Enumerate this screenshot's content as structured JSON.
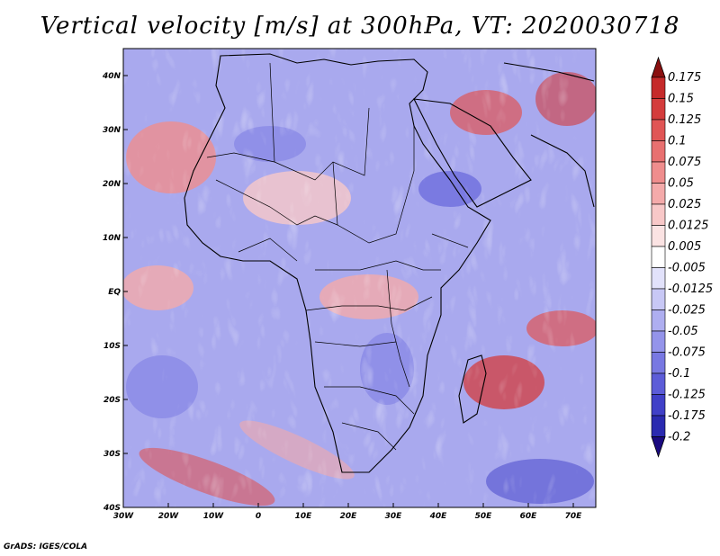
{
  "title": "Vertical velocity [m/s] at 300hPa, VT: 2020030718",
  "credit": "GrADS: IGES/COLA",
  "map": {
    "lon_ticks": [
      "30W",
      "20W",
      "10W",
      "0",
      "10E",
      "20E",
      "30E",
      "40E",
      "50E",
      "60E",
      "70E"
    ],
    "lat_ticks": [
      "40N",
      "30N",
      "20N",
      "10N",
      "EQ",
      "10S",
      "20S",
      "30S",
      "40S"
    ],
    "lon_range": [
      -30,
      75
    ],
    "lat_range": [
      -40,
      45
    ]
  },
  "colorbar": {
    "labels": [
      "0.175",
      "0.15",
      "0.125",
      "0.1",
      "0.075",
      "0.05",
      "0.025",
      "0.0125",
      "0.005",
      "-0.005",
      "-0.0125",
      "-0.025",
      "-0.05",
      "-0.075",
      "-0.1",
      "-0.125",
      "-0.175",
      "-0.2"
    ],
    "colors": [
      "#b01a1a",
      "#c52a2a",
      "#d43c3c",
      "#e05555",
      "#e87070",
      "#ef8d8d",
      "#f4aaaa",
      "#f8c8c8",
      "#fbe3e3",
      "#ffffff",
      "#e2e2fb",
      "#c8c8f5",
      "#aeaef0",
      "#9494ea",
      "#7878e2",
      "#5c5cd8",
      "#4040c8",
      "#2a2ab0",
      "#1a1a90"
    ],
    "top_arrow_color": "#8a1010",
    "bottom_arrow_color": "#1a0a80"
  }
}
